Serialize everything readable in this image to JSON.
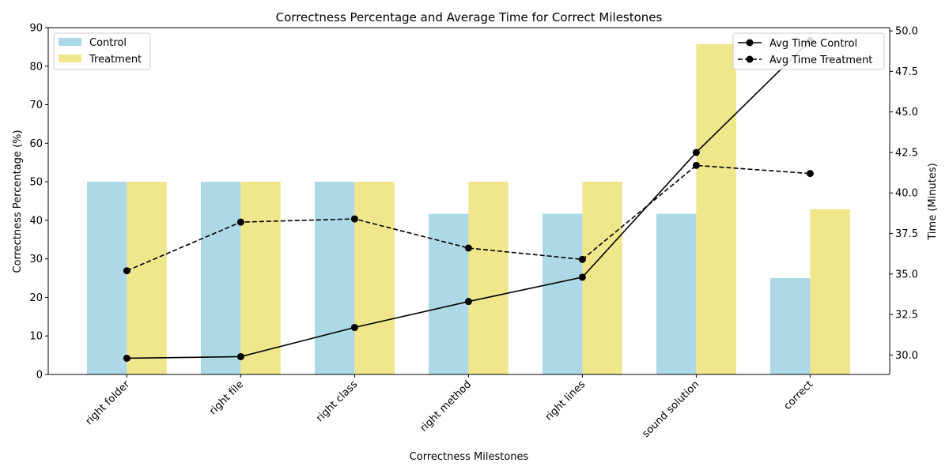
{
  "chart_data": {
    "type": "bar",
    "title": "Correctness Percentage and Average Time for Correct Milestones",
    "xlabel": "Correctness Milestones",
    "ylabel": "Correctness Percentage (%)",
    "ylabel_right": "Time (Minutes)",
    "categories": [
      "right folder",
      "right file",
      "right class",
      "right method",
      "right lines",
      "sound solution",
      "correct"
    ],
    "ylim": [
      0,
      90
    ],
    "yticks": [
      0,
      10,
      20,
      30,
      40,
      50,
      60,
      70,
      80,
      90
    ],
    "ylim_right": [
      28.8,
      50.2
    ],
    "yticks_right": [
      "30.0",
      "32.5",
      "35.0",
      "37.5",
      "40.0",
      "42.5",
      "45.0",
      "47.5",
      "50.0"
    ],
    "grid": false,
    "bar_series": [
      {
        "name": "Control",
        "color": "#add8e6",
        "values": [
          50.0,
          50.0,
          50.0,
          41.7,
          41.7,
          41.7,
          25.0
        ]
      },
      {
        "name": "Treatment",
        "color": "#f0e68c",
        "values": [
          50.0,
          50.0,
          50.0,
          50.0,
          50.0,
          85.7,
          42.9
        ]
      }
    ],
    "line_series": [
      {
        "name": "Avg Time Control",
        "style": "solid",
        "color": "#000000",
        "values": [
          29.8,
          29.9,
          31.7,
          33.3,
          34.8,
          42.5,
          49.4
        ]
      },
      {
        "name": "Avg Time Treatment",
        "style": "dashed",
        "color": "#000000",
        "values": [
          35.2,
          38.2,
          38.4,
          36.6,
          35.9,
          41.7,
          41.2
        ]
      }
    ],
    "legend_bars_position": "top-left",
    "legend_lines_position": "top-right"
  }
}
